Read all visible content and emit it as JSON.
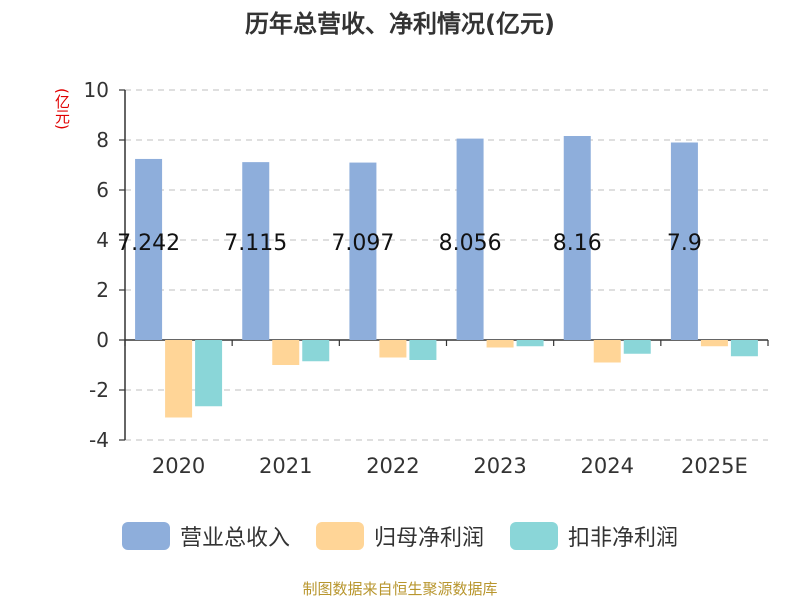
{
  "chart_data": {
    "type": "bar",
    "title": "历年总营收、净利情况(亿元)",
    "ylabel": "(亿元)",
    "xlabel": "",
    "categories": [
      "2020",
      "2021",
      "2022",
      "2023",
      "2024",
      "2025E"
    ],
    "ylim": [
      -4,
      10
    ],
    "yticks": [
      10,
      8,
      6,
      4,
      2,
      0,
      -2,
      -4
    ],
    "ytick_labels": [
      "10",
      "8",
      "6",
      "4",
      "2",
      "0",
      "-2",
      "-4"
    ],
    "grid": true,
    "legend_position": "bottom",
    "series": [
      {
        "name": "营业总收入",
        "color": "#8eaedb",
        "values": [
          7.242,
          7.115,
          7.097,
          8.056,
          8.16,
          7.9
        ],
        "data_labels": [
          "7.242",
          "7.115",
          "7.097",
          "8.056",
          "8.16",
          "7.9"
        ]
      },
      {
        "name": "归母净利润",
        "color": "#ffd597",
        "values": [
          -3.1,
          -1.0,
          -0.7,
          -0.3,
          -0.9,
          -0.25
        ]
      },
      {
        "name": "扣非净利润",
        "color": "#8ad6d8",
        "values": [
          -2.65,
          -0.85,
          -0.8,
          -0.25,
          -0.55,
          -0.65
        ]
      }
    ],
    "source": "制图数据来自恒生聚源数据库"
  }
}
